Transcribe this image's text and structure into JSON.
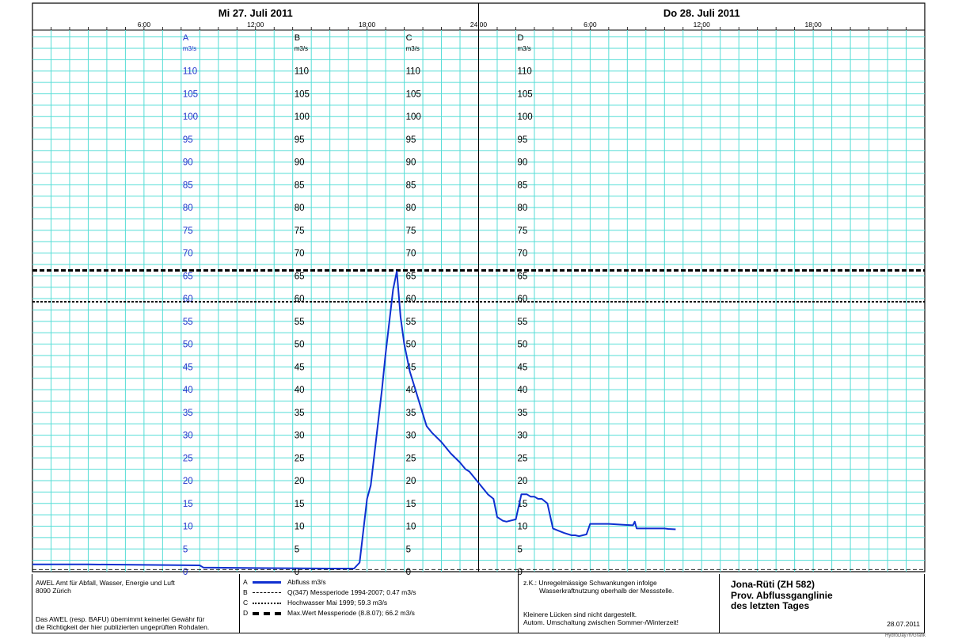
{
  "header": {
    "day1": "Mi  27. Juli  2011",
    "day2": "Do  28. Juli  2011",
    "time_ticks": [
      "6:00",
      "12:00",
      "18:00",
      "24:00",
      "6:00",
      "12:00",
      "18:00"
    ]
  },
  "chart_data": {
    "type": "line",
    "x_unit": "hours from 00:00 on 27.07.2011",
    "xlim": [
      0,
      48
    ],
    "ylim": [
      0,
      119
    ],
    "y_ticks": [
      0,
      5,
      10,
      15,
      20,
      25,
      30,
      35,
      40,
      45,
      50,
      55,
      60,
      65,
      70,
      75,
      80,
      85,
      90,
      95,
      100,
      105,
      110
    ],
    "axes": [
      {
        "letter": "A",
        "unit": "m3/s",
        "color": "#2233cc"
      },
      {
        "letter": "B",
        "unit": "m3/s",
        "color": "#000000"
      },
      {
        "letter": "C",
        "unit": "m3/s",
        "color": "#000000"
      },
      {
        "letter": "D",
        "unit": "m3/s",
        "color": "#000000"
      }
    ],
    "reference_lines": [
      {
        "key": "D",
        "value": 66.2,
        "label": "Max.Wert Messperiode (8.8.07); 66.2 m3/s"
      },
      {
        "key": "C",
        "value": 59.3,
        "label": "Hochwasser Mai 1999; 59.3 m3/s"
      },
      {
        "key": "B",
        "value": 0.47,
        "label": "Q(347) Messperiode 1994-2007; 0.47 m3/s"
      }
    ],
    "series": [
      {
        "name": "Abfluss m3/s",
        "color": "#1030d0",
        "x": [
          0,
          3,
          6,
          9,
          9.2,
          12,
          16,
          17.3,
          17.6,
          17.8,
          18.0,
          18.2,
          18.4,
          18.6,
          18.8,
          19.0,
          19.2,
          19.4,
          19.6,
          19.8,
          20.0,
          20.3,
          20.6,
          20.9,
          21.2,
          21.5,
          22.0,
          22.5,
          23.0,
          23.3,
          23.5,
          23.7,
          24.0,
          24.5,
          24.8,
          25.0,
          25.3,
          25.5,
          26.0,
          26.3,
          26.6,
          26.8,
          27.0,
          27.2,
          27.4,
          27.7,
          28.0,
          28.3,
          28.6,
          29.0,
          29.2,
          29.4,
          29.6,
          29.8,
          30.0,
          31.0,
          31.8,
          32.3,
          32.4,
          32.5,
          33.2,
          34.0,
          34.2,
          34.6
        ],
        "y": [
          1.6,
          1.6,
          1.5,
          1.4,
          0.9,
          0.8,
          0.7,
          0.7,
          2,
          9,
          16,
          19,
          26,
          33,
          40,
          48,
          55,
          62,
          66,
          56,
          50,
          44,
          40,
          36,
          32,
          30.5,
          28.5,
          26,
          24,
          22.5,
          22,
          21,
          19.5,
          17,
          16,
          12,
          11.2,
          11,
          11.5,
          17,
          17,
          16.5,
          16.5,
          16,
          16,
          15,
          9.5,
          9,
          8.5,
          8,
          8,
          7.8,
          8,
          8.2,
          10.5,
          10.5,
          10.3,
          10.2,
          11,
          9.5,
          9.5,
          9.5,
          9.4,
          9.3
        ]
      }
    ]
  },
  "footer": {
    "org_line1": "AWEL  Amt für Abfall, Wasser, Energie und Luft",
    "org_line2": "8090 Zürich",
    "disclaimer_line1": "Das AWEL (resp. BAFU) übernimmt keinerlei Gewähr für",
    "disclaimer_line2": "die Richtigkeit der hier publizierten ungeprüften Rohdaten.",
    "legend": [
      {
        "key": "A",
        "label": "Abfluss m3/s",
        "style": "solid-blue"
      },
      {
        "key": "B",
        "label": "Q(347) Messperiode 1994-2007; 0.47 m3/s",
        "style": "dashed-thin"
      },
      {
        "key": "C",
        "label": "Hochwasser Mai 1999; 59.3 m3/s",
        "style": "dotted"
      },
      {
        "key": "D",
        "label": "Max.Wert Messperiode (8.8.07); 66.2 m3/s",
        "style": "dashed-thick"
      }
    ],
    "note_line1": "z.K.: Unregelmässige Schwankungen infolge",
    "note_line2": "Wasserkraftnutzung oberhalb der Messstelle.",
    "note_line3": "Kleinere Lücken sind nicht dargestellt.",
    "note_line4": "Autom. Umschaltung zwischen Sommer-/Winterzeit!",
    "station": "Jona-Rüti (ZH 582)",
    "chart_title_line1": "Prov. Abflussganglinie",
    "chart_title_line2": "des letzten Tages",
    "date": "28.07.2011",
    "stamp": "HydroDay7h/Grafik"
  }
}
